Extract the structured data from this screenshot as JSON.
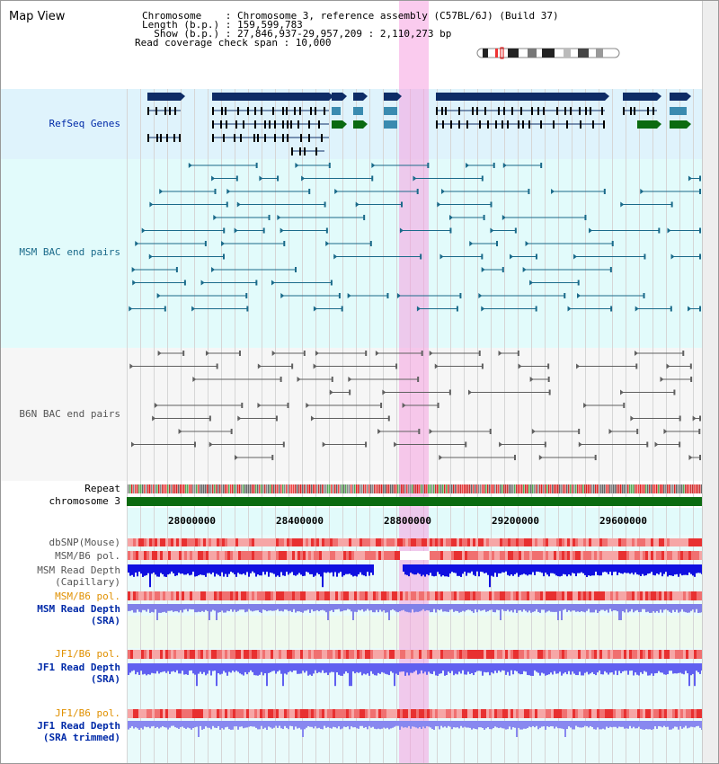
{
  "title": "Map View",
  "info": {
    "line1": "Chromosome    : Chromosome 3, reference assembly (C57BL/6J) (Build 37)",
    "line2": "Length (b.p.) : 159,599,783",
    "line3": "  Show (b.p.) : 27,846,937-29,957,209 : 2,110,273 bp",
    "line4": "Read coverage check span : 10,000"
  },
  "tracks": {
    "refseq": "RefSeq Genes",
    "msm_bac": "MSM BAC end pairs",
    "b6n_bac": "B6N BAC end pairs",
    "repeat": "Repeat",
    "chromosome": "chromosome 3",
    "dbsnp": "dbSNP(Mouse)",
    "msm_b6_pol_1": "MSM/B6 pol.",
    "msm_depth_cap_1": "MSM Read Depth",
    "msm_depth_cap_2": "(Capillary)",
    "msm_b6_pol_2": "MSM/B6 pol.",
    "msm_depth_sra_1": "MSM Read Depth",
    "msm_depth_sra_2": "(SRA)",
    "jf1_b6_pol_1": "JF1/B6 pol.",
    "jf1_depth_sra_1": "JF1 Read Depth",
    "jf1_depth_sra_2": "(SRA)",
    "jf1_b6_pol_2": "JF1/B6 pol.",
    "jf1_depth_trim_1": "JF1 Read Depth",
    "jf1_depth_trim_2": "(SRA trimmed)"
  },
  "ruler": {
    "ticks": [
      "28000000",
      "28400000",
      "28800000",
      "29200000",
      "29600000"
    ]
  },
  "colors": {
    "refseq_band": "#dff3fc",
    "msm_band": "#e2fbfb",
    "b6n_band": "#f6f6f6",
    "gene": "#0e2c66",
    "gene_green": "#0b6b10",
    "msm_pair": "#1a6a8a",
    "b6n_pair": "#606060",
    "label_blue": "#002aa8",
    "label_orange": "#e09000",
    "highlight": "#f6a0e0"
  }
}
